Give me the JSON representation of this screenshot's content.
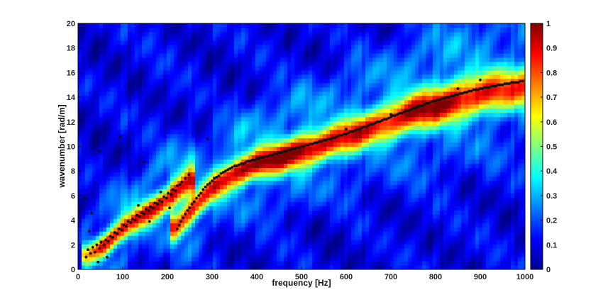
{
  "chart_data": {
    "type": "heatmap",
    "title": "",
    "xlabel": "frequency [Hz]",
    "ylabel": "wavenumber [rad/m]",
    "xlim": [
      0,
      1000
    ],
    "ylim": [
      0,
      20
    ],
    "x_ticks": [
      0,
      100,
      200,
      300,
      400,
      500,
      600,
      700,
      800,
      900,
      1000
    ],
    "y_ticks": [
      0,
      2,
      4,
      6,
      8,
      10,
      12,
      14,
      16,
      18,
      20
    ],
    "colorbar": {
      "range": [
        0,
        1
      ],
      "ticks": [
        0,
        0.1,
        0.2,
        0.3,
        0.4,
        0.5,
        0.6,
        0.7,
        0.8,
        0.9,
        1
      ],
      "colormap": "jet"
    },
    "grid": false,
    "ridges": [
      {
        "x": [
          20,
          60,
          100,
          150,
          200,
          250
        ],
        "y": [
          1.2,
          2.0,
          3.3,
          4.6,
          5.7,
          7.2
        ],
        "peak": [
          0.55,
          0.8,
          0.8,
          0.8,
          0.75,
          0.7
        ]
      },
      {
        "x": [
          220,
          260,
          300,
          350,
          400,
          450,
          500,
          550,
          600,
          650,
          700,
          750,
          800,
          850,
          900,
          950,
          1000
        ],
        "y": [
          3.5,
          5.0,
          6.6,
          7.9,
          8.6,
          9.1,
          9.7,
          10.2,
          10.8,
          11.5,
          12.1,
          12.8,
          13.3,
          13.8,
          14.3,
          14.6,
          14.9
        ],
        "peak": [
          0.6,
          0.7,
          0.8,
          0.85,
          0.9,
          0.92,
          0.9,
          0.85,
          0.8,
          0.78,
          0.8,
          0.85,
          0.88,
          0.85,
          0.78,
          0.72,
          0.68
        ]
      }
    ],
    "scatter": [
      {
        "x": 18,
        "y": 1.0
      },
      {
        "x": 22,
        "y": 1.6
      },
      {
        "x": 28,
        "y": 1.3
      },
      {
        "x": 33,
        "y": 1.8
      },
      {
        "x": 38,
        "y": 1.4
      },
      {
        "x": 42,
        "y": 2.0
      },
      {
        "x": 48,
        "y": 1.7
      },
      {
        "x": 52,
        "y": 2.2
      },
      {
        "x": 58,
        "y": 2.0
      },
      {
        "x": 62,
        "y": 2.4
      },
      {
        "x": 68,
        "y": 2.3
      },
      {
        "x": 72,
        "y": 2.7
      },
      {
        "x": 78,
        "y": 2.6
      },
      {
        "x": 82,
        "y": 3.0
      },
      {
        "x": 88,
        "y": 2.9
      },
      {
        "x": 92,
        "y": 3.3
      },
      {
        "x": 98,
        "y": 3.2
      },
      {
        "x": 102,
        "y": 3.6
      },
      {
        "x": 108,
        "y": 3.5
      },
      {
        "x": 112,
        "y": 3.9
      },
      {
        "x": 118,
        "y": 3.8
      },
      {
        "x": 122,
        "y": 4.1
      },
      {
        "x": 128,
        "y": 4.0
      },
      {
        "x": 132,
        "y": 4.4
      },
      {
        "x": 138,
        "y": 4.3
      },
      {
        "x": 142,
        "y": 4.6
      },
      {
        "x": 148,
        "y": 4.5
      },
      {
        "x": 152,
        "y": 4.9
      },
      {
        "x": 158,
        "y": 4.8
      },
      {
        "x": 162,
        "y": 5.1
      },
      {
        "x": 168,
        "y": 5.0
      },
      {
        "x": 172,
        "y": 5.4
      },
      {
        "x": 178,
        "y": 5.3
      },
      {
        "x": 182,
        "y": 5.6
      },
      {
        "x": 188,
        "y": 5.5
      },
      {
        "x": 192,
        "y": 5.9
      },
      {
        "x": 198,
        "y": 5.8
      },
      {
        "x": 202,
        "y": 6.2
      },
      {
        "x": 208,
        "y": 6.1
      },
      {
        "x": 212,
        "y": 6.5
      },
      {
        "x": 218,
        "y": 6.4
      },
      {
        "x": 222,
        "y": 6.8
      },
      {
        "x": 228,
        "y": 6.9
      },
      {
        "x": 232,
        "y": 7.1
      },
      {
        "x": 240,
        "y": 7.4
      },
      {
        "x": 248,
        "y": 7.7
      },
      {
        "x": 15,
        "y": 5.8
      },
      {
        "x": 25,
        "y": 3.1
      },
      {
        "x": 30,
        "y": 4.6
      },
      {
        "x": 50,
        "y": 9.6
      },
      {
        "x": 95,
        "y": 10.8
      },
      {
        "x": 148,
        "y": 8.7
      },
      {
        "x": 290,
        "y": 10.6
      },
      {
        "x": 45,
        "y": 0.6
      },
      {
        "x": 65,
        "y": 1.0
      },
      {
        "x": 135,
        "y": 5.2
      },
      {
        "x": 160,
        "y": 3.9
      },
      {
        "x": 185,
        "y": 6.3
      },
      {
        "x": 205,
        "y": 5.0
      },
      {
        "x": 222,
        "y": 3.3
      },
      {
        "x": 226,
        "y": 3.6
      },
      {
        "x": 230,
        "y": 3.9
      },
      {
        "x": 235,
        "y": 4.2
      },
      {
        "x": 240,
        "y": 4.5
      },
      {
        "x": 245,
        "y": 4.8
      },
      {
        "x": 250,
        "y": 5.0
      },
      {
        "x": 255,
        "y": 5.3
      },
      {
        "x": 260,
        "y": 5.5
      },
      {
        "x": 265,
        "y": 5.8
      },
      {
        "x": 270,
        "y": 6.0
      },
      {
        "x": 275,
        "y": 6.2
      },
      {
        "x": 280,
        "y": 6.5
      },
      {
        "x": 285,
        "y": 6.7
      },
      {
        "x": 290,
        "y": 6.9
      },
      {
        "x": 295,
        "y": 7.0
      },
      {
        "x": 300,
        "y": 7.2
      },
      {
        "x": 305,
        "y": 7.4
      },
      {
        "x": 310,
        "y": 7.5
      },
      {
        "x": 315,
        "y": 7.6
      },
      {
        "x": 320,
        "y": 7.8
      },
      {
        "x": 325,
        "y": 7.9
      },
      {
        "x": 330,
        "y": 8.0
      },
      {
        "x": 335,
        "y": 8.1
      },
      {
        "x": 340,
        "y": 8.2
      },
      {
        "x": 345,
        "y": 8.3
      },
      {
        "x": 350,
        "y": 8.4
      },
      {
        "x": 355,
        "y": 8.4
      },
      {
        "x": 360,
        "y": 8.5
      },
      {
        "x": 365,
        "y": 8.6
      },
      {
        "x": 370,
        "y": 8.6
      },
      {
        "x": 375,
        "y": 8.7
      },
      {
        "x": 380,
        "y": 8.8
      },
      {
        "x": 385,
        "y": 8.8
      },
      {
        "x": 390,
        "y": 8.9
      },
      {
        "x": 395,
        "y": 8.9
      },
      {
        "x": 400,
        "y": 9.0
      },
      {
        "x": 405,
        "y": 9.0
      },
      {
        "x": 410,
        "y": 9.1
      },
      {
        "x": 415,
        "y": 9.1
      },
      {
        "x": 420,
        "y": 9.2
      },
      {
        "x": 425,
        "y": 9.2
      },
      {
        "x": 430,
        "y": 9.3
      },
      {
        "x": 435,
        "y": 9.3
      },
      {
        "x": 440,
        "y": 9.4
      },
      {
        "x": 445,
        "y": 9.4
      },
      {
        "x": 450,
        "y": 9.5
      },
      {
        "x": 455,
        "y": 9.5
      },
      {
        "x": 460,
        "y": 9.6
      },
      {
        "x": 465,
        "y": 9.6
      },
      {
        "x": 470,
        "y": 9.7
      },
      {
        "x": 475,
        "y": 9.7
      },
      {
        "x": 480,
        "y": 9.8
      },
      {
        "x": 485,
        "y": 9.8
      },
      {
        "x": 490,
        "y": 9.9
      },
      {
        "x": 495,
        "y": 9.9
      },
      {
        "x": 500,
        "y": 10.0
      },
      {
        "x": 505,
        "y": 10.0
      },
      {
        "x": 510,
        "y": 10.1
      },
      {
        "x": 515,
        "y": 10.1
      },
      {
        "x": 520,
        "y": 10.2
      },
      {
        "x": 525,
        "y": 10.2
      },
      {
        "x": 530,
        "y": 10.3
      },
      {
        "x": 535,
        "y": 10.3
      },
      {
        "x": 540,
        "y": 10.4
      },
      {
        "x": 545,
        "y": 10.4
      },
      {
        "x": 550,
        "y": 10.5
      },
      {
        "x": 555,
        "y": 10.5
      },
      {
        "x": 560,
        "y": 10.6
      },
      {
        "x": 565,
        "y": 10.6
      },
      {
        "x": 570,
        "y": 10.7
      },
      {
        "x": 575,
        "y": 10.7
      },
      {
        "x": 580,
        "y": 10.8
      },
      {
        "x": 585,
        "y": 10.9
      },
      {
        "x": 590,
        "y": 10.9
      },
      {
        "x": 595,
        "y": 11.0
      },
      {
        "x": 600,
        "y": 11.0
      },
      {
        "x": 605,
        "y": 11.1
      },
      {
        "x": 610,
        "y": 11.2
      },
      {
        "x": 615,
        "y": 11.2
      },
      {
        "x": 620,
        "y": 11.3
      },
      {
        "x": 625,
        "y": 11.4
      },
      {
        "x": 630,
        "y": 11.4
      },
      {
        "x": 635,
        "y": 11.5
      },
      {
        "x": 640,
        "y": 11.6
      },
      {
        "x": 645,
        "y": 11.6
      },
      {
        "x": 650,
        "y": 11.7
      },
      {
        "x": 655,
        "y": 11.8
      },
      {
        "x": 660,
        "y": 11.8
      },
      {
        "x": 665,
        "y": 11.9
      },
      {
        "x": 670,
        "y": 12.0
      },
      {
        "x": 675,
        "y": 12.0
      },
      {
        "x": 680,
        "y": 12.1
      },
      {
        "x": 685,
        "y": 12.2
      },
      {
        "x": 690,
        "y": 12.2
      },
      {
        "x": 695,
        "y": 12.3
      },
      {
        "x": 700,
        "y": 12.4
      },
      {
        "x": 705,
        "y": 12.5
      },
      {
        "x": 710,
        "y": 12.5
      },
      {
        "x": 715,
        "y": 12.6
      },
      {
        "x": 720,
        "y": 12.7
      },
      {
        "x": 725,
        "y": 12.7
      },
      {
        "x": 730,
        "y": 12.8
      },
      {
        "x": 735,
        "y": 12.9
      },
      {
        "x": 740,
        "y": 12.9
      },
      {
        "x": 745,
        "y": 13.0
      },
      {
        "x": 750,
        "y": 13.1
      },
      {
        "x": 755,
        "y": 13.1
      },
      {
        "x": 760,
        "y": 13.2
      },
      {
        "x": 765,
        "y": 13.3
      },
      {
        "x": 770,
        "y": 13.3
      },
      {
        "x": 775,
        "y": 13.4
      },
      {
        "x": 780,
        "y": 13.5
      },
      {
        "x": 785,
        "y": 13.5
      },
      {
        "x": 790,
        "y": 13.6
      },
      {
        "x": 795,
        "y": 13.7
      },
      {
        "x": 800,
        "y": 13.7
      },
      {
        "x": 805,
        "y": 13.8
      },
      {
        "x": 810,
        "y": 13.8
      },
      {
        "x": 815,
        "y": 13.9
      },
      {
        "x": 820,
        "y": 13.9
      },
      {
        "x": 825,
        "y": 14.0
      },
      {
        "x": 830,
        "y": 14.0
      },
      {
        "x": 835,
        "y": 14.1
      },
      {
        "x": 840,
        "y": 14.1
      },
      {
        "x": 845,
        "y": 14.2
      },
      {
        "x": 850,
        "y": 14.2
      },
      {
        "x": 855,
        "y": 14.3
      },
      {
        "x": 860,
        "y": 14.3
      },
      {
        "x": 865,
        "y": 14.4
      },
      {
        "x": 870,
        "y": 14.4
      },
      {
        "x": 875,
        "y": 14.5
      },
      {
        "x": 880,
        "y": 14.5
      },
      {
        "x": 885,
        "y": 14.6
      },
      {
        "x": 890,
        "y": 14.6
      },
      {
        "x": 895,
        "y": 14.6
      },
      {
        "x": 900,
        "y": 14.7
      },
      {
        "x": 905,
        "y": 14.7
      },
      {
        "x": 910,
        "y": 14.8
      },
      {
        "x": 915,
        "y": 14.8
      },
      {
        "x": 920,
        "y": 14.8
      },
      {
        "x": 925,
        "y": 14.9
      },
      {
        "x": 930,
        "y": 14.9
      },
      {
        "x": 935,
        "y": 14.9
      },
      {
        "x": 940,
        "y": 15.0
      },
      {
        "x": 945,
        "y": 15.0
      },
      {
        "x": 950,
        "y": 15.0
      },
      {
        "x": 955,
        "y": 15.1
      },
      {
        "x": 960,
        "y": 15.1
      },
      {
        "x": 965,
        "y": 15.1
      },
      {
        "x": 970,
        "y": 15.2
      },
      {
        "x": 975,
        "y": 15.2
      },
      {
        "x": 980,
        "y": 15.2
      },
      {
        "x": 985,
        "y": 15.2
      },
      {
        "x": 990,
        "y": 15.3
      },
      {
        "x": 995,
        "y": 15.3
      },
      {
        "x": 700,
        "y": 12.6
      },
      {
        "x": 900,
        "y": 15.4
      },
      {
        "x": 850,
        "y": 14.7
      },
      {
        "x": 600,
        "y": 11.4
      }
    ]
  }
}
